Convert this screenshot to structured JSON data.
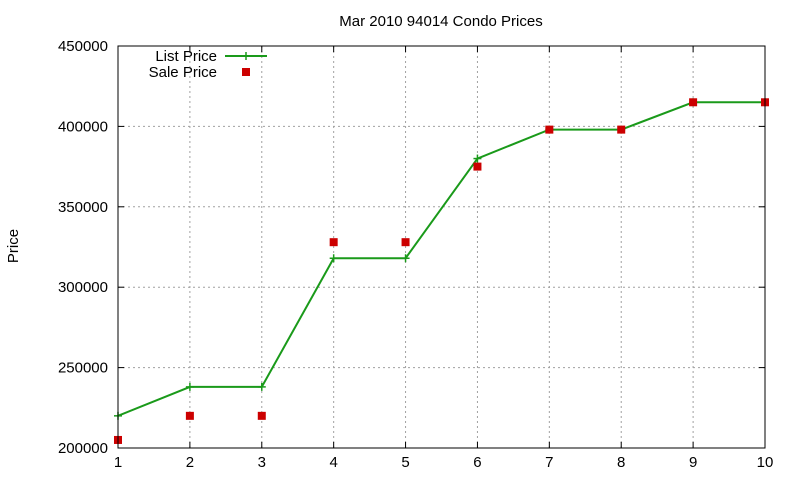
{
  "chart_data": {
    "type": "line",
    "title": "Mar 2010 94014 Condo Prices",
    "xlabel": "",
    "ylabel": "Price",
    "x": [
      1,
      2,
      3,
      4,
      5,
      6,
      7,
      8,
      9,
      10
    ],
    "xlim": [
      1,
      10
    ],
    "ylim": [
      200000,
      450000
    ],
    "xticks": [
      "1",
      "2",
      "3",
      "4",
      "5",
      "6",
      "7",
      "8",
      "9",
      "10"
    ],
    "yticks": [
      "200000",
      "250000",
      "300000",
      "350000",
      "400000",
      "450000"
    ],
    "grid": true,
    "legend_position": "top-left",
    "series": [
      {
        "name": "List Price",
        "style": "line with cross markers",
        "color": "#1a9a1a",
        "values": [
          220000,
          238000,
          238000,
          318000,
          318000,
          380000,
          398000,
          398000,
          415000,
          415000
        ]
      },
      {
        "name": "Sale Price",
        "style": "square markers",
        "color": "#cc0000",
        "values": [
          205000,
          220000,
          220000,
          328000,
          328000,
          375000,
          398000,
          398000,
          415000,
          415000
        ]
      }
    ]
  }
}
